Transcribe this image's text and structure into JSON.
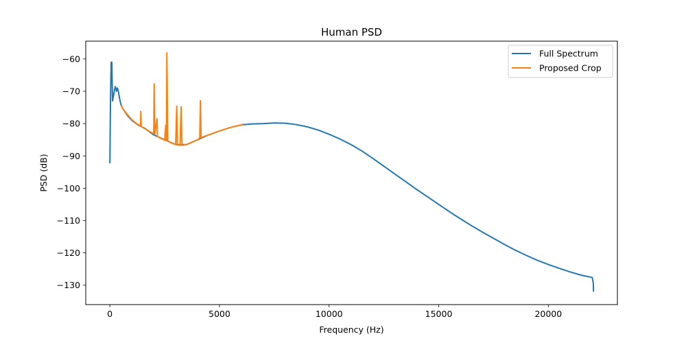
{
  "chart_data": {
    "type": "line",
    "title": "Human PSD",
    "xlabel": "Frequency (Hz)",
    "ylabel": "PSD (dB)",
    "xlim": [
      -1100,
      23150
    ],
    "ylim": [
      -136,
      -54.5
    ],
    "xticks": [
      0,
      5000,
      10000,
      15000,
      20000
    ],
    "xtick_labels": [
      "0",
      "5000",
      "10000",
      "15000",
      "20000"
    ],
    "yticks": [
      -60,
      -70,
      -80,
      -90,
      -100,
      -110,
      -120,
      -130
    ],
    "ytick_labels": [
      "−60",
      "−70",
      "−80",
      "−90",
      "−100",
      "−110",
      "−120",
      "−130"
    ],
    "grid": false,
    "legend_position": "top-right",
    "series": [
      {
        "name": "Full Spectrum",
        "color": "#1f77b4",
        "points": [
          [
            0,
            -92.3
          ],
          [
            30,
            -72
          ],
          [
            60,
            -61
          ],
          [
            90,
            -61
          ],
          [
            120,
            -73
          ],
          [
            150,
            -72
          ],
          [
            200,
            -70
          ],
          [
            250,
            -68.5
          ],
          [
            300,
            -70
          ],
          [
            350,
            -69
          ],
          [
            400,
            -70.5
          ],
          [
            450,
            -72.5
          ],
          [
            500,
            -74
          ],
          [
            600,
            -75.5
          ],
          [
            800,
            -77.5
          ],
          [
            1000,
            -79
          ],
          [
            1300,
            -80.5
          ],
          [
            1600,
            -81.5
          ],
          [
            2000,
            -83.5
          ],
          [
            2500,
            -85
          ],
          [
            3000,
            -86.5
          ],
          [
            3500,
            -86.5
          ],
          [
            4000,
            -85
          ],
          [
            4500,
            -83.5
          ],
          [
            5000,
            -82.3
          ],
          [
            5500,
            -81.2
          ],
          [
            6000,
            -80.4
          ],
          [
            6500,
            -80.1
          ],
          [
            7000,
            -80
          ],
          [
            7500,
            -79.8
          ],
          [
            8000,
            -79.9
          ],
          [
            8500,
            -80.3
          ],
          [
            9000,
            -81
          ],
          [
            9500,
            -82
          ],
          [
            10000,
            -83.3
          ],
          [
            10500,
            -84.8
          ],
          [
            11000,
            -86.5
          ],
          [
            11500,
            -88.5
          ],
          [
            12000,
            -90.8
          ],
          [
            12500,
            -93.2
          ],
          [
            13000,
            -95.6
          ],
          [
            13500,
            -98
          ],
          [
            14000,
            -100.4
          ],
          [
            14500,
            -102.7
          ],
          [
            15000,
            -105
          ],
          [
            15500,
            -107.3
          ],
          [
            16000,
            -109.5
          ],
          [
            16500,
            -111.6
          ],
          [
            17000,
            -113.6
          ],
          [
            17500,
            -115.5
          ],
          [
            18000,
            -117.4
          ],
          [
            18500,
            -119.2
          ],
          [
            19000,
            -120.8
          ],
          [
            19500,
            -122.3
          ],
          [
            20000,
            -123.6
          ],
          [
            20500,
            -124.8
          ],
          [
            21000,
            -125.9
          ],
          [
            21500,
            -126.9
          ],
          [
            22000,
            -127.6
          ],
          [
            22050,
            -129.4
          ],
          [
            22060,
            -132
          ]
        ]
      },
      {
        "name": "Proposed Crop",
        "color": "#ff7f0e",
        "points": [
          [
            500,
            -74.3
          ],
          [
            600,
            -75.5
          ],
          [
            800,
            -77.2
          ],
          [
            1000,
            -78.8
          ],
          [
            1200,
            -79.9
          ],
          [
            1400,
            -80.8
          ],
          [
            1410,
            -76.2
          ],
          [
            1430,
            -80.9
          ],
          [
            1600,
            -81.6
          ],
          [
            1800,
            -82.4
          ],
          [
            2000,
            -83.1
          ],
          [
            2020,
            -67.7
          ],
          [
            2050,
            -83.3
          ],
          [
            2150,
            -78.5
          ],
          [
            2170,
            -84
          ],
          [
            2300,
            -84.5
          ],
          [
            2500,
            -85.1
          ],
          [
            2550,
            -80.5
          ],
          [
            2580,
            -85.2
          ],
          [
            2600,
            -58.1
          ],
          [
            2640,
            -85.4
          ],
          [
            2800,
            -86
          ],
          [
            3000,
            -86.5
          ],
          [
            3050,
            -74.6
          ],
          [
            3080,
            -86.6
          ],
          [
            3200,
            -86.7
          ],
          [
            3250,
            -74.8
          ],
          [
            3290,
            -86.7
          ],
          [
            3500,
            -86.5
          ],
          [
            3800,
            -85.6
          ],
          [
            4000,
            -85
          ],
          [
            4100,
            -84.5
          ],
          [
            4130,
            -72.9
          ],
          [
            4160,
            -84.3
          ],
          [
            4500,
            -83.5
          ],
          [
            5000,
            -82.3
          ],
          [
            5500,
            -81.2
          ],
          [
            6000,
            -80.4
          ],
          [
            6100,
            -80.2
          ]
        ]
      }
    ]
  }
}
